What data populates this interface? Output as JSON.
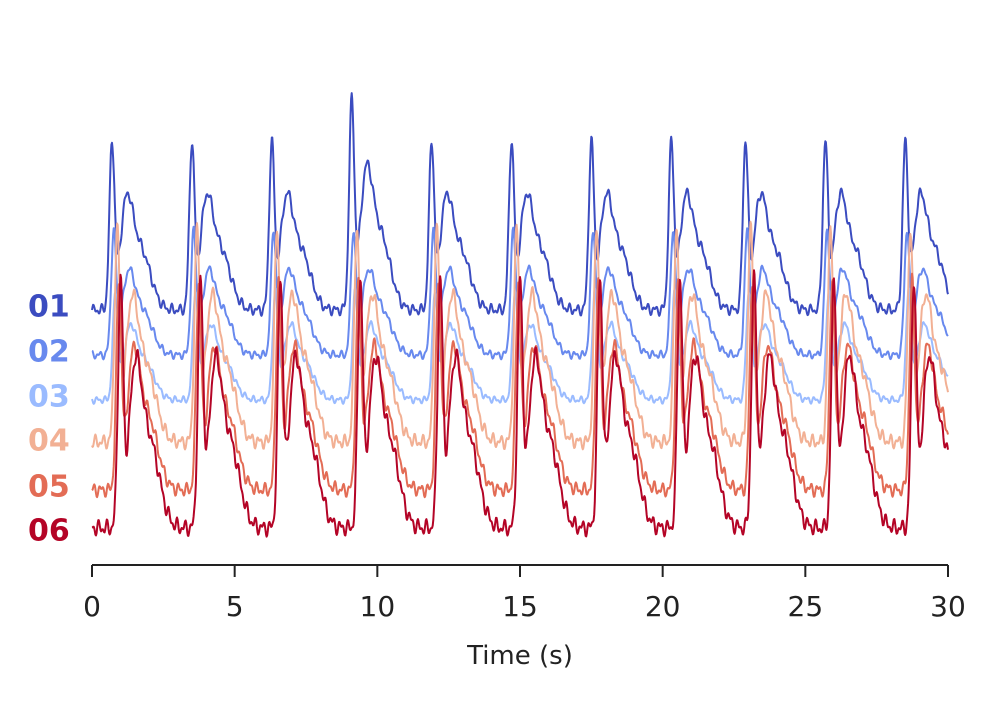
{
  "chart_data": {
    "type": "line",
    "title": "",
    "xlabel": "Time (s)",
    "ylabel": "",
    "xlim": [
      0,
      30
    ],
    "xticks": [
      0,
      5,
      10,
      15,
      20,
      25,
      30
    ],
    "grid": false,
    "legend": "none",
    "beat_times_s": [
      0.7,
      3.5,
      6.3,
      9.1,
      11.9,
      14.7,
      17.5,
      20.3,
      22.9,
      25.7,
      28.5
    ],
    "series": [
      {
        "name": "01",
        "color": "#3b4cc0"
      },
      {
        "name": "02",
        "color": "#6889ee"
      },
      {
        "name": "03",
        "color": "#9abbff"
      },
      {
        "name": "04",
        "color": "#f2b094"
      },
      {
        "name": "05",
        "color": "#e36c55"
      },
      {
        "name": "06",
        "color": "#b40426"
      }
    ]
  }
}
